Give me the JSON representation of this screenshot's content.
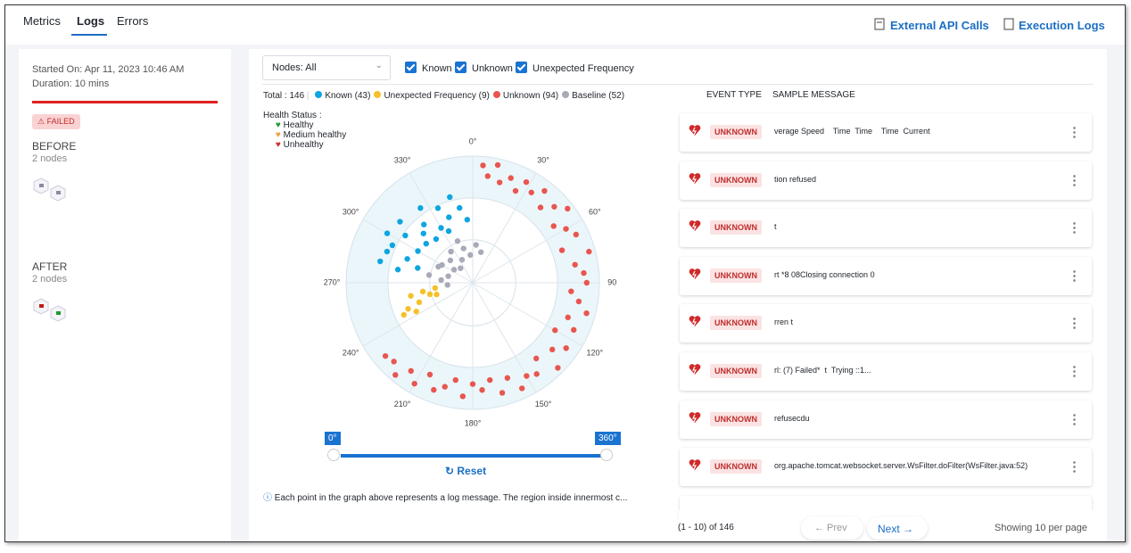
{
  "tabs": [
    "Metrics",
    "Logs",
    "Errors"
  ],
  "header_links": [
    "External API Calls",
    "Execution Logs"
  ],
  "summary": {
    "started": "Started On: Apr 11, 2023 10:46 AM",
    "duration": "Duration: 10 mins",
    "status": "FAILED",
    "before": {
      "title": "BEFORE",
      "nodes": "2 nodes"
    },
    "after": {
      "title": "AFTER",
      "nodes": "2 nodes"
    }
  },
  "filters": {
    "nodes": "Nodes: All",
    "checks": [
      "Known",
      "Unknown",
      "Unexpected Frequency"
    ]
  },
  "legend": {
    "total": "Total : 146",
    "health_label": "Health Status :",
    "health": [
      "Healthy",
      "Medium healthy",
      "Unhealthy"
    ]
  },
  "chart_data": {
    "type": "scatter",
    "polar": true,
    "rlim": [
      0,
      1
    ],
    "anglelim": [
      {
        "value": 0,
        "label": "0°"
      },
      {
        "value": 360,
        "label": "360°"
      }
    ],
    "angleticks": [
      {
        "value": 0,
        "label": "0°"
      },
      {
        "value": 30,
        "label": "30°"
      },
      {
        "value": 60,
        "label": "60°"
      },
      {
        "value": 90,
        "label": "90°"
      },
      {
        "value": 120,
        "label": "120°"
      },
      {
        "value": 150,
        "label": "150°"
      },
      {
        "value": 180,
        "label": "180°"
      },
      {
        "value": 210,
        "label": "210°"
      },
      {
        "value": 240,
        "label": "240°"
      },
      {
        "value": 270,
        "label": "270°"
      },
      {
        "value": 300,
        "label": "300°"
      },
      {
        "value": 330,
        "label": "330°"
      }
    ],
    "series": [
      {
        "name": "Known (43)",
        "color": "#0ea5e0",
        "x": [
          280,
          285,
          290,
          295,
          300,
          305,
          310,
          315,
          320,
          325,
          330,
          335,
          340,
          345,
          350,
          355,
          300,
          310,
          320,
          290,
          283,
          335
        ],
        "values": [
          0.6,
          0.45,
          0.55,
          0.7,
          0.5,
          0.65,
          0.75,
          0.55,
          0.6,
          0.72,
          0.5,
          0.65,
          0.55,
          0.7,
          0.6,
          0.5,
          0.78,
          0.48,
          0.45,
          0.72,
          0.75,
          0.45
        ]
      },
      {
        "name": "Unexpected Frequency (9)",
        "color": "#f5c02a",
        "x": [
          245,
          250,
          255,
          258,
          262,
          248,
          252,
          260,
          243
        ],
        "values": [
          0.6,
          0.45,
          0.35,
          0.5,
          0.3,
          0.55,
          0.3,
          0.4,
          0.5
        ]
      },
      {
        "name": "Unknown (94)",
        "color": "#e8564f",
        "x": [
          5,
          8,
          12,
          15,
          20,
          25,
          28,
          33,
          38,
          42,
          47,
          52,
          55,
          60,
          65,
          70,
          75,
          80,
          85,
          90,
          95,
          100,
          105,
          110,
          115,
          120,
          125,
          130,
          135,
          140,
          145,
          150,
          155,
          160,
          165,
          170,
          175,
          180,
          185,
          190,
          195,
          200,
          205,
          210,
          215,
          220,
          225,
          230
        ],
        "values": [
          0.93,
          0.85,
          0.95,
          0.82,
          0.88,
          0.8,
          0.9,
          0.85,
          0.92,
          0.8,
          0.88,
          0.95,
          0.78,
          0.85,
          0.9,
          0.75,
          0.95,
          0.82,
          0.88,
          0.9,
          0.78,
          0.85,
          0.93,
          0.8,
          0.88,
          0.75,
          0.9,
          0.82,
          0.95,
          0.78,
          0.88,
          0.85,
          0.92,
          0.8,
          0.9,
          0.78,
          0.85,
          0.8,
          0.9,
          0.78,
          0.85,
          0.9,
          0.8,
          0.92,
          0.85,
          0.95,
          0.88,
          0.9
        ]
      },
      {
        "name": "Baseline (52)",
        "color": "#a9aab8",
        "x": [
          275,
          285,
          295,
          305,
          315,
          325,
          335,
          345,
          355,
          5,
          15,
          265,
          280,
          300,
          320,
          340
        ],
        "values": [
          0.25,
          0.2,
          0.3,
          0.18,
          0.25,
          0.3,
          0.2,
          0.28,
          0.22,
          0.3,
          0.25,
          0.2,
          0.35,
          0.28,
          0.15,
          0.35
        ]
      }
    ]
  },
  "slider": {
    "reset": "Reset"
  },
  "info": "Each point in the graph above represents a log message. The region inside innermost c...",
  "table": {
    "headers": [
      "EVENT TYPE",
      "SAMPLE MESSAGE"
    ],
    "rows": [
      [
        "UNKNOWN",
        "verage Speed    Time  Time    Time  Current"
      ],
      [
        "UNKNOWN",
        "tion refused"
      ],
      [
        "UNKNOWN",
        "t"
      ],
      [
        "UNKNOWN",
        "rt *8 08Closing connection 0"
      ],
      [
        "UNKNOWN",
        "rren t"
      ],
      [
        "UNKNOWN",
        "rl: (7) Failed*  t  Trying ::1..."
      ],
      [
        "UNKNOWN",
        "refusecdu"
      ],
      [
        "UNKNOWN",
        "org.apache.tomcat.websocket.server.WsFilter.doFilter(WsFilter.java:52)"
      ]
    ]
  },
  "pagination": {
    "range": "(1 - 10) of 146",
    "prev": "← Prev",
    "next": "Next →",
    "per_page": "Showing 10 per page"
  }
}
